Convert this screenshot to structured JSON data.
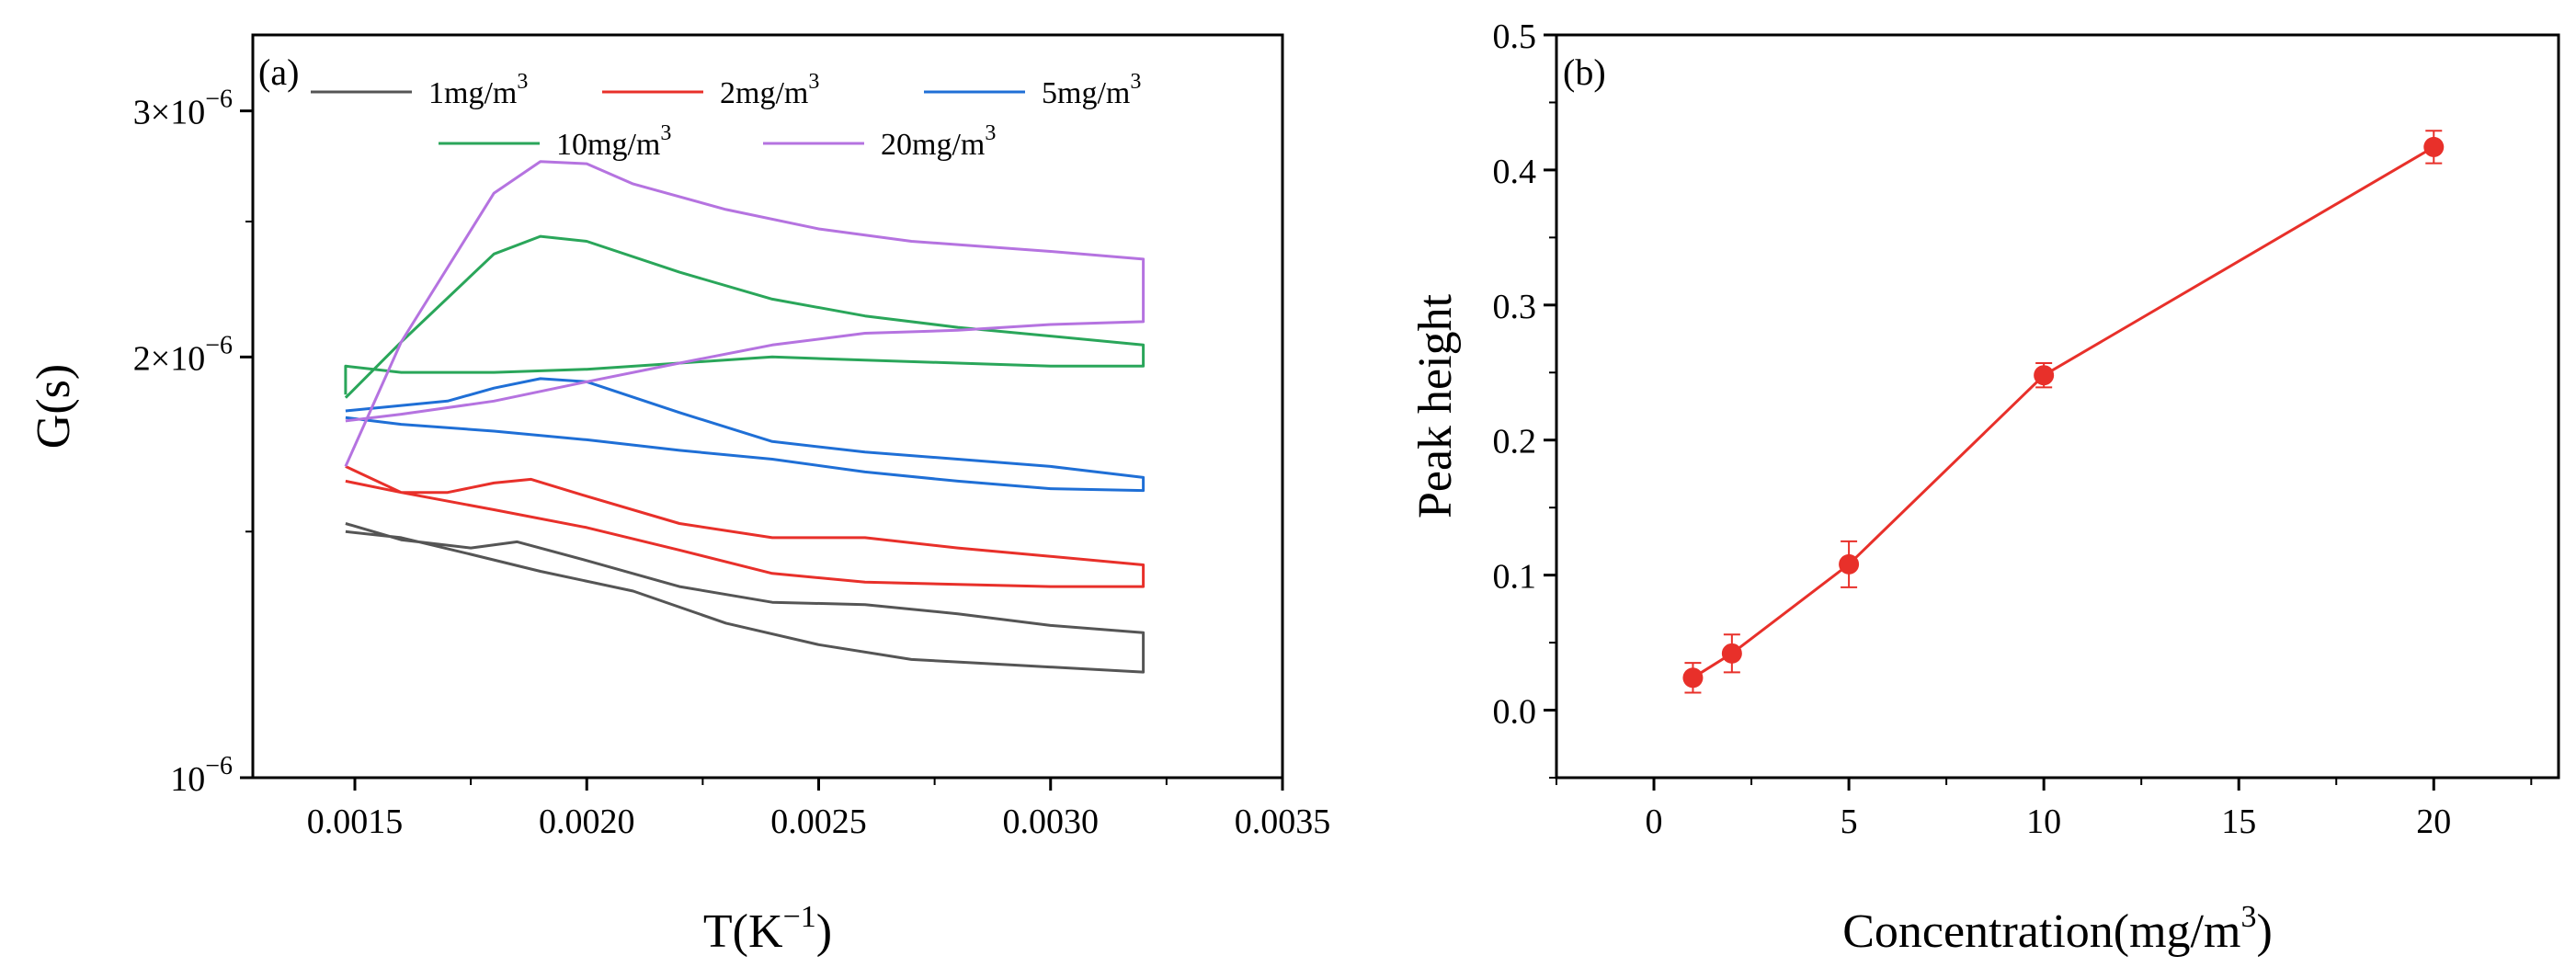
{
  "chart_data": [
    {
      "panel": "(a)",
      "type": "line",
      "xlabel": "T(K⁻¹)",
      "xlabel_main": "T(K",
      "xlabel_sup": "−1",
      "xlabel_tail": ")",
      "ylabel": "G(s)",
      "yscale": "log",
      "xlim": [
        0.00128,
        0.0035
      ],
      "ylim": [
        1e-06,
        3.4e-06
      ],
      "xticks": [
        0.0015,
        0.002,
        0.0025,
        0.003,
        0.0035
      ],
      "xtick_labels": [
        "0.0015",
        "0.0020",
        "0.0025",
        "0.0030",
        "0.0035"
      ],
      "yticks": [
        {
          "value": 1e-06,
          "base": "10",
          "exp": "−6"
        },
        {
          "value": 2e-06,
          "base": "2×10",
          "exp": "−6"
        },
        {
          "value": 3e-06,
          "base": "3×10",
          "exp": "−6"
        }
      ],
      "legend_placement": "top",
      "series": [
        {
          "name": "1mg/m³",
          "label_main": "1mg/m",
          "label_sup": "3",
          "color": "#555555",
          "x": [
            0.00148,
            0.0016,
            0.00175,
            0.00185,
            0.002,
            0.0022,
            0.0024,
            0.0026,
            0.0028,
            0.003,
            0.0032,
            0.0032,
            0.0031,
            0.0029,
            0.0027,
            0.0025,
            0.0023,
            0.0021,
            0.0019,
            0.00175,
            0.0016,
            0.00148
          ],
          "y": [
            1.52e-06,
            1.48e-06,
            1.46e-06,
            1.475e-06,
            1.43e-06,
            1.37e-06,
            1.335e-06,
            1.33e-06,
            1.31e-06,
            1.285e-06,
            1.27e-06,
            1.19e-06,
            1.195e-06,
            1.205e-06,
            1.215e-06,
            1.245e-06,
            1.29e-06,
            1.36e-06,
            1.405e-06,
            1.445e-06,
            1.485e-06,
            1.5e-06
          ]
        },
        {
          "name": "2mg/m³",
          "label_main": "2mg/m",
          "label_sup": "3",
          "color": "#e8302a",
          "x": [
            0.00148,
            0.0016,
            0.0017,
            0.0018,
            0.00188,
            0.002,
            0.0022,
            0.0024,
            0.0026,
            0.0028,
            0.003,
            0.0032,
            0.0032,
            0.003,
            0.0028,
            0.0026,
            0.0024,
            0.0022,
            0.002,
            0.0018,
            0.0016,
            0.00148
          ],
          "y": [
            1.63e-06,
            1.6e-06,
            1.6e-06,
            1.625e-06,
            1.635e-06,
            1.59e-06,
            1.52e-06,
            1.485e-06,
            1.485e-06,
            1.46e-06,
            1.44e-06,
            1.42e-06,
            1.37e-06,
            1.37e-06,
            1.375e-06,
            1.38e-06,
            1.4e-06,
            1.455e-06,
            1.51e-06,
            1.555e-06,
            1.6e-06,
            1.67e-06
          ]
        },
        {
          "name": "5mg/m³",
          "label_main": "5mg/m",
          "label_sup": "3",
          "color": "#1f6fd6",
          "x": [
            0.00148,
            0.0017,
            0.0018,
            0.0019,
            0.002,
            0.0022,
            0.0024,
            0.0026,
            0.0028,
            0.003,
            0.0032,
            0.0032,
            0.003,
            0.0028,
            0.0026,
            0.0024,
            0.0022,
            0.002,
            0.0018,
            0.0016,
            0.00148
          ],
          "y": [
            1.83e-06,
            1.86e-06,
            1.9e-06,
            1.93e-06,
            1.92e-06,
            1.825e-06,
            1.74e-06,
            1.71e-06,
            1.69e-06,
            1.67e-06,
            1.64e-06,
            1.605e-06,
            1.61e-06,
            1.63e-06,
            1.655e-06,
            1.69e-06,
            1.715e-06,
            1.745e-06,
            1.77e-06,
            1.79e-06,
            1.81e-06
          ]
        },
        {
          "name": "10mg/m³",
          "label_main": "10mg/m",
          "label_sup": "3",
          "color": "#2aa65a",
          "x": [
            0.00148,
            0.0016,
            0.0018,
            0.0019,
            0.002,
            0.0022,
            0.0024,
            0.0026,
            0.0028,
            0.003,
            0.0032,
            0.0032,
            0.003,
            0.0028,
            0.0026,
            0.0024,
            0.0022,
            0.002,
            0.0018,
            0.0016,
            0.00148,
            0.00148
          ],
          "y": [
            1.87e-06,
            2.05e-06,
            2.37e-06,
            2.44e-06,
            2.42e-06,
            2.3e-06,
            2.2e-06,
            2.14e-06,
            2.1e-06,
            2.07e-06,
            2.04e-06,
            1.97e-06,
            1.97e-06,
            1.98e-06,
            1.99e-06,
            2e-06,
            1.98e-06,
            1.96e-06,
            1.95e-06,
            1.95e-06,
            1.97e-06,
            1.88e-06
          ]
        },
        {
          "name": "20mg/m³",
          "label_main": "20mg/m",
          "label_sup": "3",
          "color": "#b573e0",
          "x": [
            0.00148,
            0.0016,
            0.0018,
            0.0019,
            0.002,
            0.0021,
            0.0023,
            0.0025,
            0.0027,
            0.003,
            0.0032,
            0.0032,
            0.003,
            0.0028,
            0.0026,
            0.0024,
            0.0022,
            0.002,
            0.0018,
            0.0016,
            0.00148
          ],
          "y": [
            1.67e-06,
            2.05e-06,
            2.62e-06,
            2.76e-06,
            2.75e-06,
            2.66e-06,
            2.55e-06,
            2.47e-06,
            2.42e-06,
            2.38e-06,
            2.35e-06,
            2.12e-06,
            2.11e-06,
            2.09e-06,
            2.08e-06,
            2.04e-06,
            1.98e-06,
            1.92e-06,
            1.86e-06,
            1.82e-06,
            1.8e-06
          ]
        }
      ]
    },
    {
      "panel": "(b)",
      "type": "line",
      "xlabel": "Concentration(mg/m³)",
      "xlabel_main": "Concentration(mg/m",
      "xlabel_sup": "3",
      "xlabel_tail": ")",
      "ylabel": "Peak height",
      "xlim": [
        -2.5,
        23.2
      ],
      "ylim": [
        -0.05,
        0.5
      ],
      "xticks": [
        0,
        5,
        10,
        15,
        20
      ],
      "xtick_labels": [
        "0",
        "5",
        "10",
        "15",
        "20"
      ],
      "yticks": [
        0.0,
        0.1,
        0.2,
        0.3,
        0.4,
        0.5
      ],
      "ytick_labels": [
        "0.0",
        "0.1",
        "0.2",
        "0.3",
        "0.4",
        "0.5"
      ],
      "color": "#e8302a",
      "series": [
        {
          "name": "Peak height",
          "x": [
            1,
            2,
            5,
            10,
            20
          ],
          "y": [
            0.024,
            0.042,
            0.108,
            0.248,
            0.417
          ],
          "err": [
            0.011,
            0.014,
            0.017,
            0.009,
            0.012
          ]
        }
      ]
    }
  ]
}
